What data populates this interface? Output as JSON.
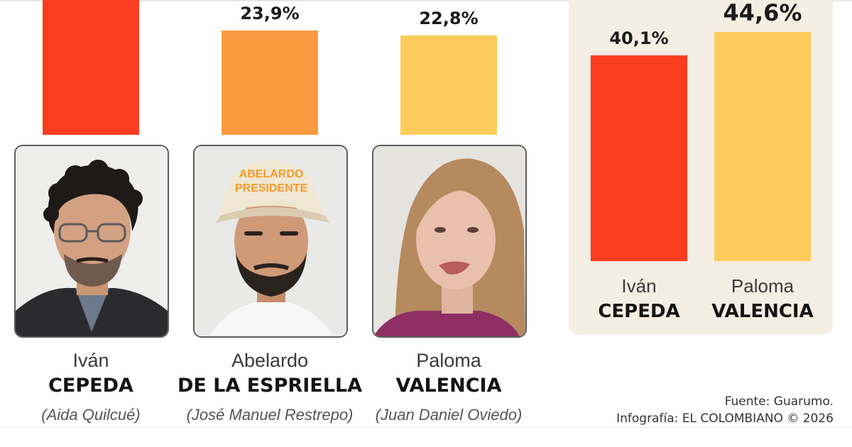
{
  "chart_data": [
    {
      "type": "bar",
      "categories": [
        "Iván CEPEDA",
        "Abelardo DE LA ESPRIELLA",
        "Paloma VALENCIA"
      ],
      "values": [
        null,
        23.9,
        22.8
      ],
      "value_labels": [
        "",
        "23,9%",
        "22,8%"
      ],
      "colors": [
        "#fa3d1f",
        "#fa9a40",
        "#fbcc5b"
      ],
      "title": "",
      "xlabel": "",
      "ylabel": ""
    },
    {
      "type": "bar",
      "categories": [
        "Iván CEPEDA",
        "Paloma VALENCIA"
      ],
      "values": [
        40.1,
        44.6
      ],
      "value_labels": [
        "40,1%",
        "44,6%"
      ],
      "colors": [
        "#fa3d1f",
        "#fbcc5b"
      ],
      "ylim": [
        0,
        65
      ],
      "title": "",
      "xlabel": "",
      "ylabel": ""
    }
  ],
  "candidates": [
    {
      "first": "Iván",
      "last": "CEPEDA",
      "running_mate": "(Aida Quilcué)"
    },
    {
      "first": "Abelardo",
      "last": "DE LA ESPRIELLA",
      "running_mate": "(José Manuel Restrepo)",
      "cap_text": "ABELARDO PRESIDENTE"
    },
    {
      "first": "Paloma",
      "last": "VALENCIA",
      "running_mate": "(Juan Daniel Oviedo)"
    }
  ],
  "runoff": [
    {
      "first": "Iván",
      "last": "CEPEDA"
    },
    {
      "first": "Paloma",
      "last": "VALENCIA"
    }
  ],
  "credits": {
    "source": "Fuente: Guarumo.",
    "infographic": "Infografía: EL COLOMBIANO © 2026"
  }
}
